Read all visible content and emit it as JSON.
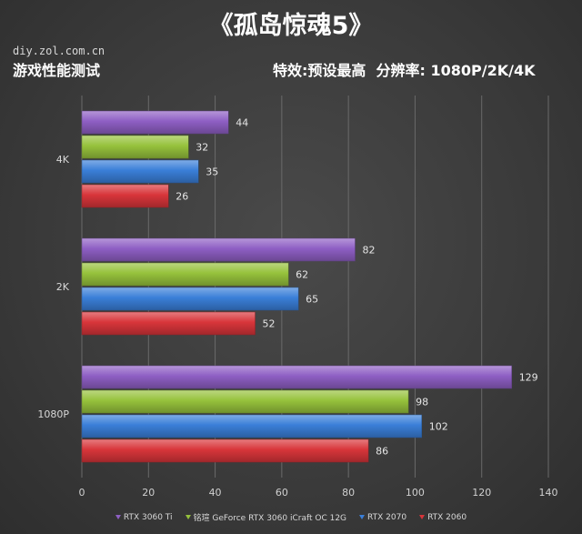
{
  "header": {
    "title": "《孤岛惊魂5》",
    "watermark": "diy.zol.com.cn",
    "subtitle_left": "游戏性能测试",
    "subtitle_right": "特效:预设最高  分辨率: 1080P/2K/4K"
  },
  "chart_data": {
    "type": "bar",
    "orientation": "horizontal",
    "categories": [
      "4K",
      "2K",
      "1080P"
    ],
    "series": [
      {
        "name": "RTX 3060 Ti",
        "color": "#8e5fc4",
        "values": [
          44,
          82,
          129
        ]
      },
      {
        "name": "铭瑄 GeForce RTX 3060 iCraft OC 12G",
        "color": "#96c23c",
        "values": [
          32,
          62,
          98
        ]
      },
      {
        "name": "RTX 2070",
        "color": "#3a7fd8",
        "values": [
          35,
          65,
          102
        ]
      },
      {
        "name": "RTX 2060",
        "color": "#d8353a",
        "values": [
          26,
          52,
          86
        ]
      }
    ],
    "xlim": [
      0,
      140
    ],
    "xticks": [
      0,
      20,
      40,
      60,
      80,
      100,
      120,
      140
    ],
    "grid": true,
    "legend_position": "bottom"
  }
}
